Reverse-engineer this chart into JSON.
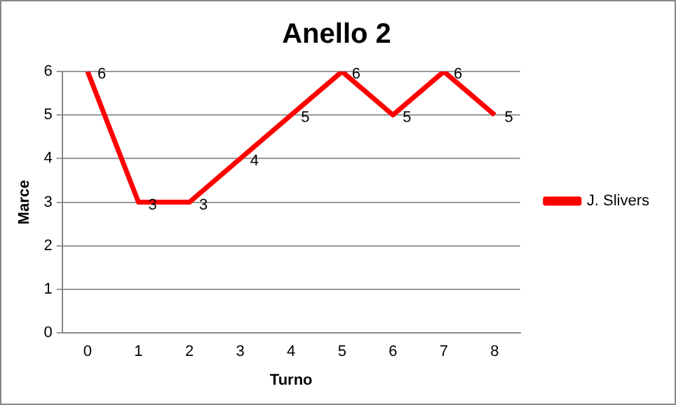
{
  "chart_data": {
    "type": "line",
    "title": "Anello 2",
    "xlabel": "Turno",
    "ylabel": "Marce",
    "categories": [
      "0",
      "1",
      "2",
      "3",
      "4",
      "5",
      "6",
      "7",
      "8"
    ],
    "series": [
      {
        "name": "J. Slivers",
        "color": "#ff0000",
        "values": [
          6,
          3,
          3,
          4,
          5,
          6,
          5,
          6,
          5
        ]
      }
    ],
    "ylim": [
      0,
      6
    ],
    "yticks": [
      0,
      1,
      2,
      3,
      4,
      5,
      6
    ],
    "grid": "y",
    "legend": "right",
    "marker": "none",
    "line_style": "solid",
    "data_labels": true
  }
}
